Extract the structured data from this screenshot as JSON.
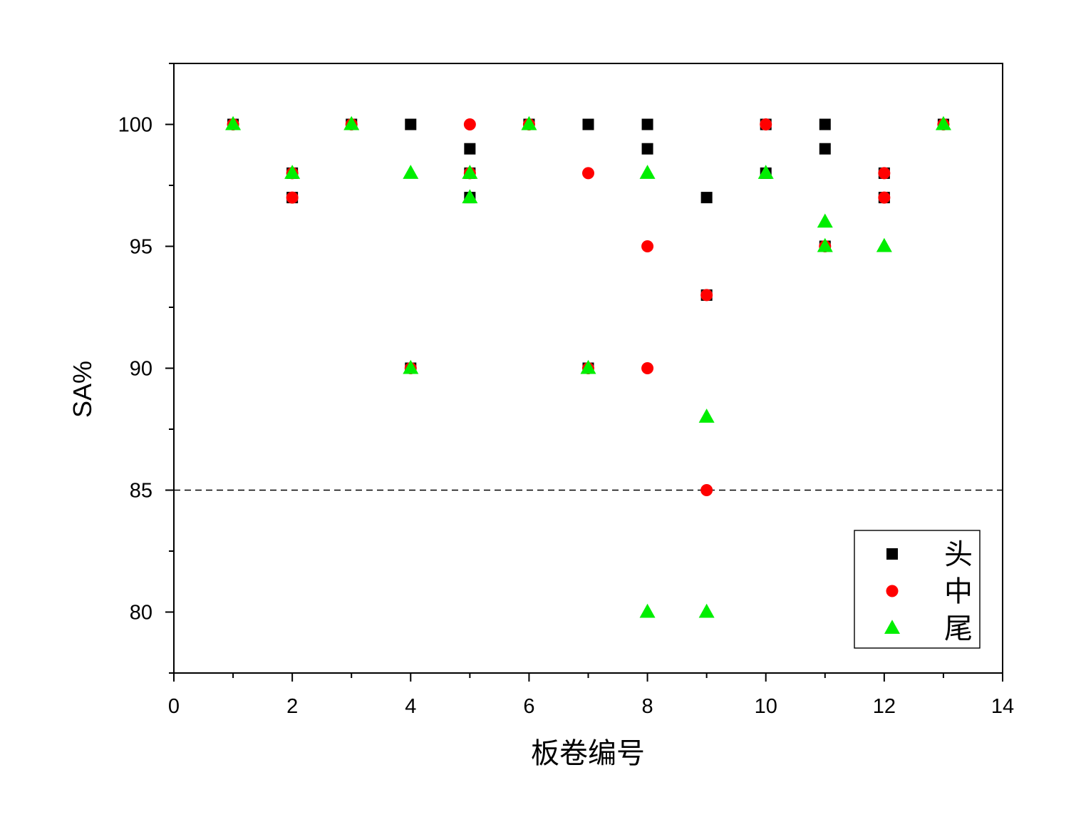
{
  "chart_data": {
    "type": "scatter",
    "xlabel": "板卷编号",
    "ylabel": "SA%",
    "xlim": [
      0,
      14
    ],
    "ylim": [
      77.5,
      102.5
    ],
    "xticks": [
      0,
      2,
      4,
      6,
      8,
      10,
      12,
      14
    ],
    "yticks": [
      80,
      85,
      90,
      95,
      100
    ],
    "grid": false,
    "legend_position": "bottom-right",
    "reference_line": {
      "y": 85,
      "style": "dashed"
    },
    "series": [
      {
        "name": "头",
        "marker": "square",
        "color": "#000000",
        "points": [
          [
            1,
            100
          ],
          [
            2,
            98
          ],
          [
            2,
            97
          ],
          [
            3,
            100
          ],
          [
            4,
            100
          ],
          [
            4,
            90
          ],
          [
            5,
            99
          ],
          [
            5,
            98
          ],
          [
            5,
            97
          ],
          [
            6,
            100
          ],
          [
            7,
            100
          ],
          [
            7,
            90
          ],
          [
            8,
            100
          ],
          [
            8,
            99
          ],
          [
            9,
            97
          ],
          [
            9,
            93
          ],
          [
            10,
            100
          ],
          [
            10,
            98
          ],
          [
            11,
            100
          ],
          [
            11,
            99
          ],
          [
            11,
            95
          ],
          [
            12,
            98
          ],
          [
            12,
            97
          ],
          [
            13,
            100
          ]
        ]
      },
      {
        "name": "中",
        "marker": "circle",
        "color": "#ff0000",
        "points": [
          [
            1,
            100
          ],
          [
            2,
            98
          ],
          [
            2,
            97
          ],
          [
            3,
            100
          ],
          [
            4,
            90
          ],
          [
            5,
            100
          ],
          [
            5,
            98
          ],
          [
            6,
            100
          ],
          [
            7,
            98
          ],
          [
            7,
            90
          ],
          [
            8,
            95
          ],
          [
            8,
            90
          ],
          [
            9,
            93
          ],
          [
            9,
            85
          ],
          [
            10,
            100
          ],
          [
            11,
            95
          ],
          [
            12,
            98
          ],
          [
            12,
            97
          ],
          [
            13,
            100
          ]
        ]
      },
      {
        "name": "尾",
        "marker": "triangle",
        "color": "#00ee00",
        "points": [
          [
            1,
            100
          ],
          [
            2,
            98
          ],
          [
            3,
            100
          ],
          [
            4,
            98
          ],
          [
            4,
            90
          ],
          [
            5,
            98
          ],
          [
            5,
            97
          ],
          [
            6,
            100
          ],
          [
            7,
            90
          ],
          [
            8,
            98
          ],
          [
            8,
            80
          ],
          [
            9,
            88
          ],
          [
            9,
            80
          ],
          [
            10,
            98
          ],
          [
            11,
            96
          ],
          [
            11,
            95
          ],
          [
            12,
            95
          ],
          [
            13,
            100
          ]
        ]
      }
    ]
  }
}
